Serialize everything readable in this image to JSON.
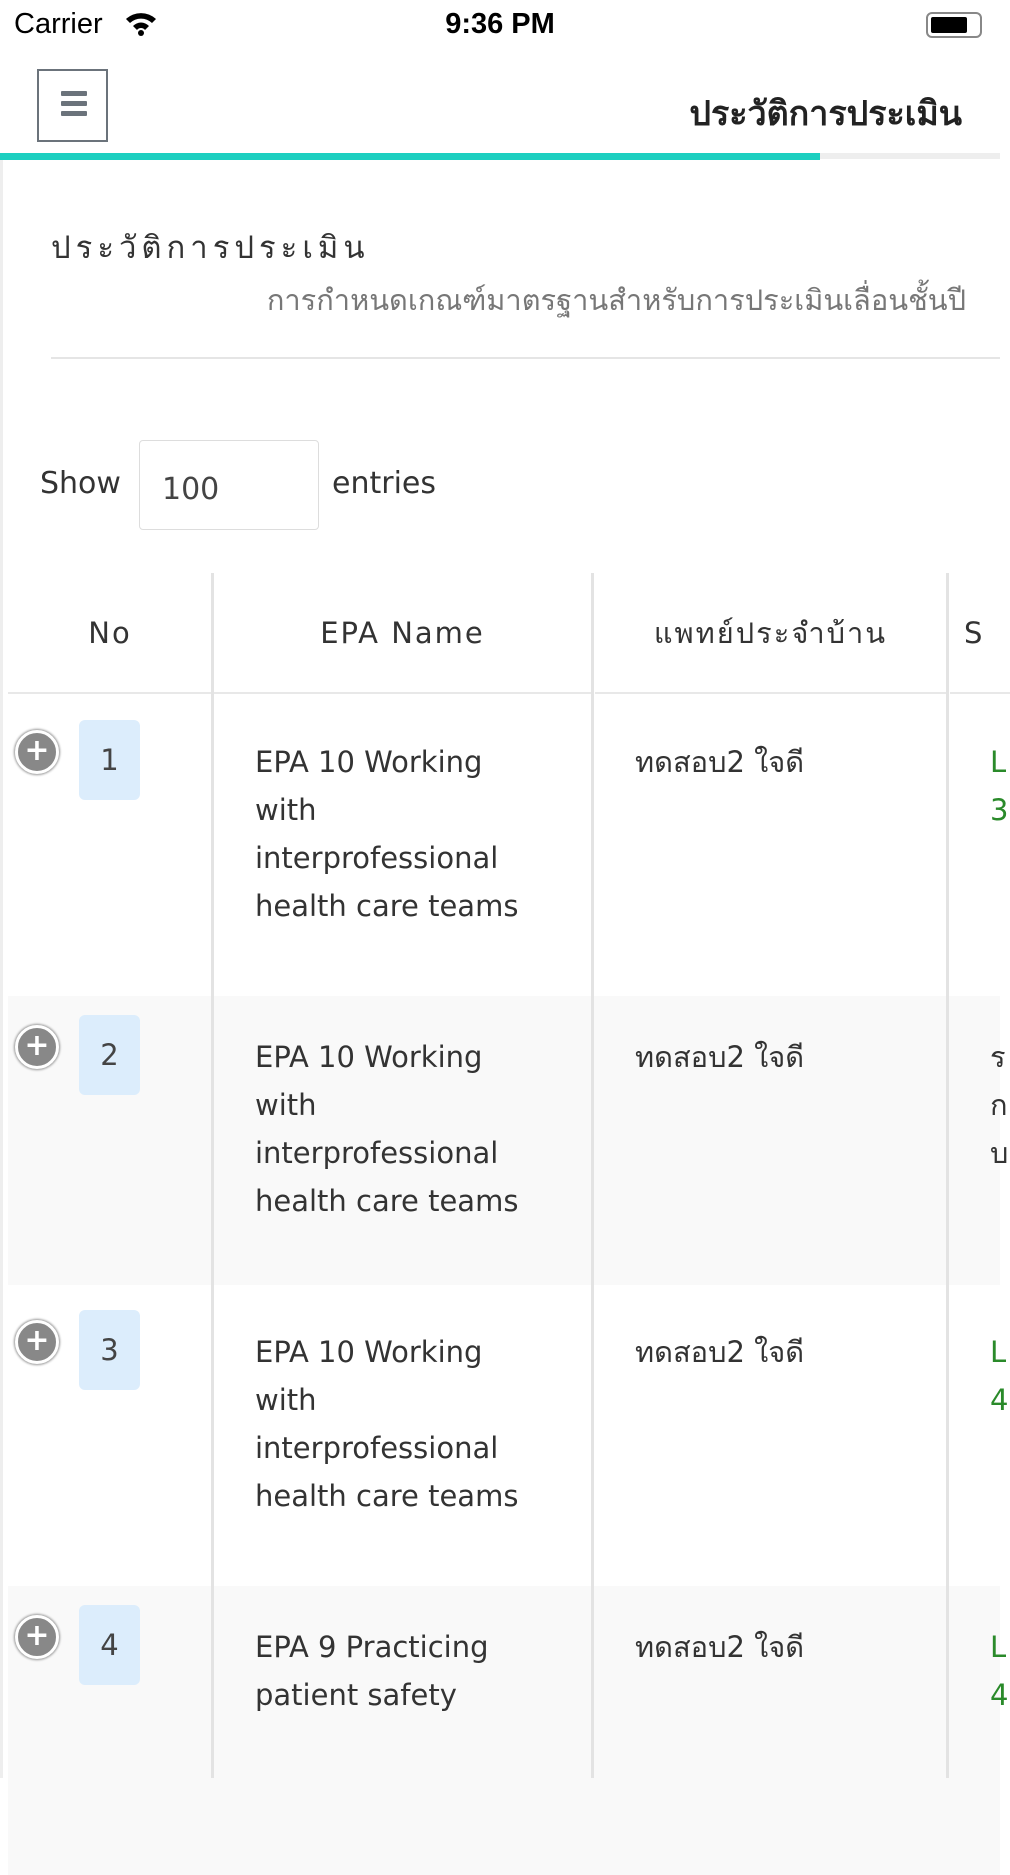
{
  "status_bar": {
    "carrier": "Carrier",
    "time": "9:36 PM"
  },
  "nav": {
    "title": "ประวัติการประเมิน",
    "menu_icon": "hamburger-icon",
    "progress_percent": 82
  },
  "page": {
    "heading": "ประวัติการประเมิน",
    "subtitle": "การกำหนดเกณฑ์มาตรฐานสำหรับการประเมินเลื่อนชั้นปี"
  },
  "length": {
    "show_label": "Show",
    "value": "100",
    "entries_label": "entries"
  },
  "table": {
    "headers": [
      "No",
      "EPA Name",
      "แพทย์ประจำบ้าน",
      "S"
    ],
    "rows": [
      {
        "no": "1",
        "epa": [
          "EPA 10 Working",
          "with",
          "interprofessional",
          "health care teams"
        ],
        "resident": "ทดสอบ2 ใจดี",
        "status": [
          "L",
          "3"
        ],
        "status_color": "green"
      },
      {
        "no": "2",
        "epa": [
          "EPA 10 Working",
          "with",
          "interprofessional",
          "health care teams"
        ],
        "resident": "ทดสอบ2 ใจดี",
        "status": [
          "ร",
          "ก",
          "บ"
        ],
        "status_color": "default"
      },
      {
        "no": "3",
        "epa": [
          "EPA 10 Working",
          "with",
          "interprofessional",
          "health care teams"
        ],
        "resident": "ทดสอบ2 ใจดี",
        "status": [
          "L",
          "4"
        ],
        "status_color": "green"
      },
      {
        "no": "4",
        "epa": [
          "EPA 9 Practicing",
          "patient safety"
        ],
        "resident": "ทดสอบ2 ใจดี",
        "status": [
          "L",
          "4"
        ],
        "status_color": "green"
      }
    ]
  },
  "colors": {
    "accent": "#1ccfc0",
    "green": "#2a8a2a",
    "badge": "#dcedfc"
  }
}
